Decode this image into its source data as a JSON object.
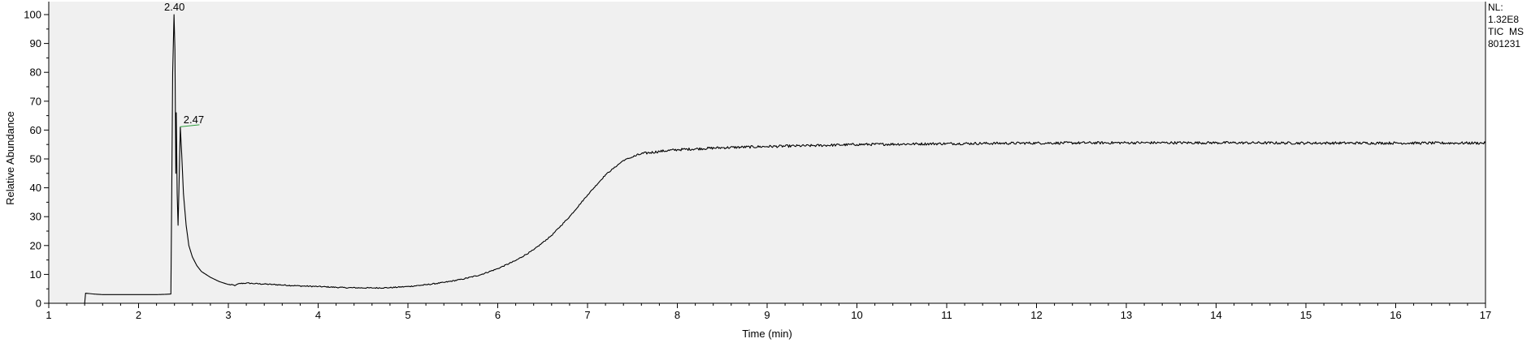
{
  "chart_data": {
    "type": "line",
    "title": "",
    "xlabel": "Time (min)",
    "ylabel": "Relative Abundance",
    "xlim": [
      1,
      17
    ],
    "ylim": [
      0,
      100
    ],
    "x_ticks": [
      1,
      2,
      3,
      4,
      5,
      6,
      7,
      8,
      9,
      10,
      11,
      12,
      13,
      14,
      15,
      16,
      17
    ],
    "y_ticks": [
      0,
      10,
      20,
      30,
      40,
      50,
      60,
      70,
      80,
      90,
      100
    ],
    "grid": false,
    "background_color": "#f0f0f0",
    "line_color": "#000000",
    "peak_marker_color": "#2e9e3e",
    "peaks": [
      {
        "label": "2.40",
        "x": 2.4,
        "y": 100
      },
      {
        "label": "2.47",
        "x": 2.47,
        "y": 61
      }
    ],
    "series": [
      {
        "points": [
          [
            1.0,
            0
          ],
          [
            1.4,
            0
          ],
          [
            1.41,
            3.5
          ],
          [
            1.5,
            3.2
          ],
          [
            1.6,
            3.0
          ],
          [
            1.8,
            3.0
          ],
          [
            2.0,
            3.0
          ],
          [
            2.2,
            3.0
          ],
          [
            2.3,
            3.1
          ],
          [
            2.36,
            3.2
          ],
          [
            2.37,
            40
          ],
          [
            2.38,
            80
          ],
          [
            2.395,
            100
          ],
          [
            2.405,
            88
          ],
          [
            2.415,
            45
          ],
          [
            2.42,
            66
          ],
          [
            2.43,
            38
          ],
          [
            2.44,
            27
          ],
          [
            2.45,
            40
          ],
          [
            2.465,
            61
          ],
          [
            2.48,
            52
          ],
          [
            2.5,
            38
          ],
          [
            2.53,
            27
          ],
          [
            2.56,
            20
          ],
          [
            2.6,
            16
          ],
          [
            2.65,
            13
          ],
          [
            2.7,
            11
          ],
          [
            2.8,
            9
          ],
          [
            2.9,
            7.5
          ],
          [
            3.0,
            6.5
          ],
          [
            3.08,
            6.2
          ],
          [
            3.12,
            6.8
          ],
          [
            3.2,
            7.0
          ],
          [
            3.3,
            6.8
          ],
          [
            3.5,
            6.5
          ],
          [
            3.8,
            6.0
          ],
          [
            4.0,
            5.8
          ],
          [
            4.3,
            5.4
          ],
          [
            4.6,
            5.3
          ],
          [
            4.8,
            5.4
          ],
          [
            5.0,
            5.8
          ],
          [
            5.2,
            6.4
          ],
          [
            5.4,
            7.2
          ],
          [
            5.6,
            8.3
          ],
          [
            5.8,
            9.8
          ],
          [
            6.0,
            12.0
          ],
          [
            6.2,
            14.8
          ],
          [
            6.4,
            18.5
          ],
          [
            6.6,
            23.5
          ],
          [
            6.8,
            30.0
          ],
          [
            7.0,
            37.5
          ],
          [
            7.2,
            44.5
          ],
          [
            7.4,
            49.5
          ],
          [
            7.6,
            51.8
          ],
          [
            7.8,
            52.6
          ],
          [
            8.0,
            53.2
          ],
          [
            8.5,
            53.9
          ],
          [
            9.0,
            54.3
          ],
          [
            9.5,
            54.6
          ],
          [
            10.0,
            55.0
          ],
          [
            11.0,
            55.3
          ],
          [
            12.0,
            55.5
          ],
          [
            13.0,
            55.6
          ],
          [
            14.0,
            55.6
          ],
          [
            15.0,
            55.5
          ],
          [
            16.0,
            55.5
          ],
          [
            17.0,
            55.5
          ]
        ]
      }
    ]
  },
  "info": {
    "nl_label": "NL:",
    "nl_value": "1.32E8",
    "scan_filter": "TIC  MS",
    "file_name": "801231"
  }
}
